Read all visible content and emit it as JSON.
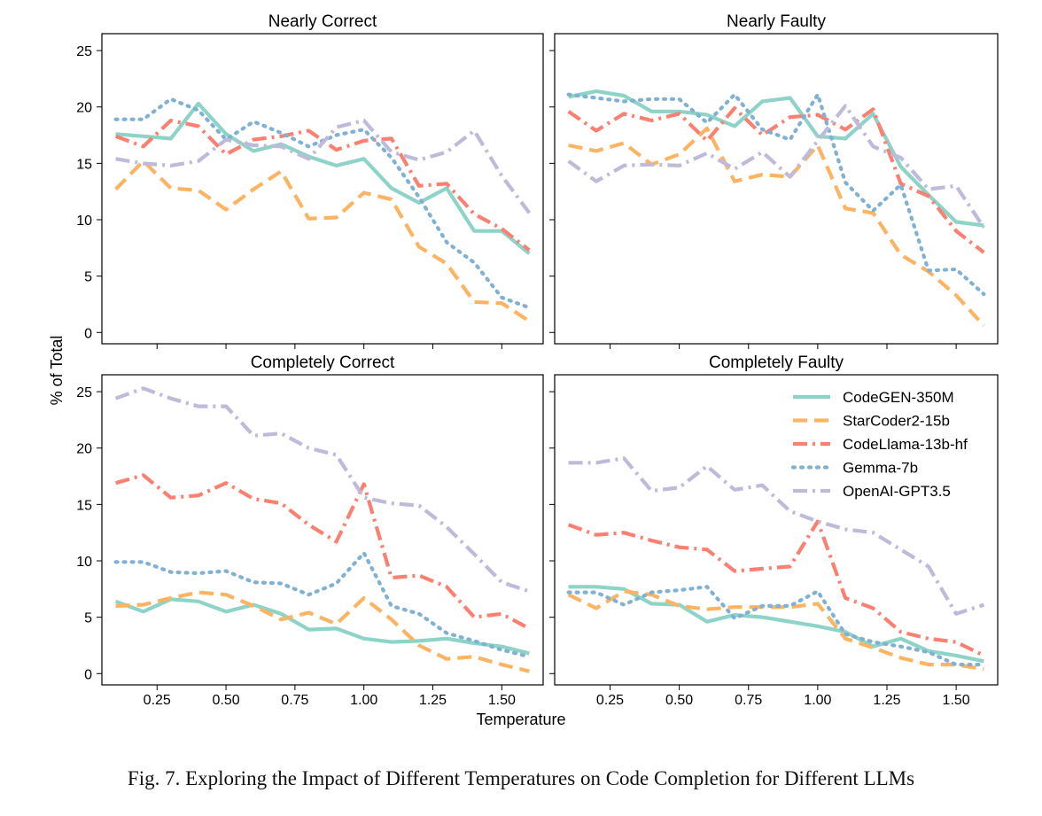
{
  "figure": {
    "ylabel": "% of Total",
    "xlabel": "Temperature",
    "caption": "Fig. 7.  Exploring the Impact of Different Temperatures on Code Completion for Different LLMs"
  },
  "chart_data": {
    "type": "line",
    "xlabel": "Temperature",
    "ylabel": "% of Total",
    "xlim": [
      0.05,
      1.65
    ],
    "ylim": [
      -1,
      26.5
    ],
    "xticks": [
      0.25,
      0.5,
      0.75,
      1.0,
      1.25,
      1.5
    ],
    "xtick_labels": [
      "0.25",
      "0.50",
      "0.75",
      "1.00",
      "1.25",
      "1.50"
    ],
    "yticks": [
      0,
      5,
      10,
      15,
      20,
      25
    ],
    "ytick_labels": [
      "0",
      "5",
      "10",
      "15",
      "20",
      "25"
    ],
    "grid": false,
    "legend_position": "top-right of the Completely Faulty panel",
    "x": [
      0.1,
      0.2,
      0.3,
      0.4,
      0.5,
      0.6,
      0.7,
      0.8,
      0.9,
      1.0,
      1.1,
      1.2,
      1.3,
      1.4,
      1.5,
      1.6
    ],
    "series_styles": [
      {
        "name": "CodeGEN-350M",
        "color": "#8dd3c7",
        "dash": "solid"
      },
      {
        "name": "StarCoder2-15b",
        "color": "#fdb462",
        "dash": "dashed"
      },
      {
        "name": "CodeLlama-13b-hf",
        "color": "#fb8072",
        "dash": "dashdot"
      },
      {
        "name": "Gemma-7b",
        "color": "#80b1d3",
        "dash": "dotted"
      },
      {
        "name": "OpenAI-GPT3.5",
        "color": "#bebada",
        "dash": "dashdot"
      }
    ],
    "panels": [
      {
        "title": "Nearly Correct",
        "series": [
          {
            "name": "CodeGEN-350M",
            "values": [
              17.6,
              17.4,
              17.2,
              20.3,
              17.6,
              16.1,
              16.7,
              15.6,
              14.8,
              15.4,
              12.8,
              11.5,
              12.8,
              9.0,
              9.0,
              7.0
            ]
          },
          {
            "name": "StarCoder2-15b",
            "values": [
              12.7,
              15.2,
              12.8,
              12.6,
              10.9,
              12.7,
              14.3,
              10.1,
              10.2,
              12.4,
              11.8,
              7.6,
              6.1,
              2.7,
              2.6,
              1.0
            ]
          },
          {
            "name": "CodeLlama-13b-hf",
            "values": [
              17.4,
              16.5,
              18.8,
              18.3,
              15.8,
              17.1,
              17.4,
              17.9,
              16.2,
              17.0,
              17.2,
              13.0,
              13.2,
              10.5,
              9.2,
              7.3
            ]
          },
          {
            "name": "Gemma-7b",
            "values": [
              18.9,
              18.9,
              20.7,
              19.7,
              17.1,
              18.7,
              17.7,
              16.5,
              17.5,
              18.0,
              15.5,
              12.0,
              8.0,
              6.2,
              3.1,
              2.2
            ]
          },
          {
            "name": "OpenAI-GPT3.5",
            "values": [
              15.4,
              15.0,
              14.8,
              15.2,
              17.1,
              16.6,
              16.5,
              15.4,
              18.2,
              18.8,
              16.0,
              15.3,
              16.0,
              17.9,
              13.9,
              10.6
            ]
          }
        ]
      },
      {
        "title": "Nearly Faulty",
        "series": [
          {
            "name": "CodeGEN-350M",
            "values": [
              20.9,
              21.4,
              21.0,
              19.6,
              19.6,
              19.3,
              18.3,
              20.5,
              20.8,
              17.4,
              17.2,
              19.4,
              14.7,
              12.2,
              9.8,
              9.5
            ]
          },
          {
            "name": "StarCoder2-15b",
            "values": [
              16.6,
              16.1,
              16.8,
              14.9,
              15.8,
              18.1,
              13.4,
              14.0,
              13.8,
              16.6,
              11.0,
              10.6,
              6.9,
              5.4,
              3.3,
              0.6
            ]
          },
          {
            "name": "CodeLlama-13b-hf",
            "values": [
              19.6,
              17.9,
              19.4,
              18.8,
              19.4,
              17.0,
              19.9,
              17.5,
              19.1,
              19.3,
              18.0,
              19.8,
              13.2,
              12.1,
              9.0,
              7.1
            ]
          },
          {
            "name": "Gemma-7b",
            "values": [
              21.1,
              20.8,
              20.5,
              20.7,
              20.7,
              18.6,
              21.1,
              18.0,
              17.1,
              21.1,
              13.3,
              10.8,
              13.1,
              5.5,
              5.6,
              3.4
            ]
          },
          {
            "name": "OpenAI-GPT3.5",
            "values": [
              15.2,
              13.4,
              14.8,
              14.9,
              14.8,
              15.9,
              14.5,
              16.0,
              13.8,
              17.0,
              20.1,
              16.5,
              15.5,
              12.7,
              13.0,
              9.3
            ]
          }
        ]
      },
      {
        "title": "Completely Correct",
        "series": [
          {
            "name": "CodeGEN-350M",
            "values": [
              6.4,
              5.5,
              6.6,
              6.4,
              5.5,
              6.1,
              5.3,
              3.9,
              4.0,
              3.1,
              2.8,
              2.9,
              3.1,
              2.7,
              2.4,
              1.8
            ]
          },
          {
            "name": "StarCoder2-15b",
            "values": [
              6.0,
              6.1,
              6.7,
              7.2,
              7.0,
              6.0,
              4.8,
              5.4,
              4.4,
              6.7,
              4.8,
              2.5,
              1.3,
              1.5,
              0.8,
              0.2
            ]
          },
          {
            "name": "CodeLlama-13b-hf",
            "values": [
              16.9,
              17.6,
              15.6,
              15.8,
              16.9,
              15.5,
              15.1,
              13.2,
              11.7,
              16.8,
              8.5,
              8.7,
              7.7,
              5.0,
              5.3,
              4.0
            ]
          },
          {
            "name": "Gemma-7b",
            "values": [
              9.9,
              9.9,
              9.0,
              8.9,
              9.1,
              8.1,
              8.0,
              7.0,
              8.0,
              10.7,
              6.0,
              5.3,
              3.6,
              2.9,
              2.1,
              1.5
            ]
          },
          {
            "name": "OpenAI-GPT3.5",
            "values": [
              24.4,
              25.3,
              24.4,
              23.7,
              23.7,
              21.1,
              21.3,
              20.0,
              19.4,
              15.6,
              15.1,
              14.9,
              13.0,
              10.6,
              8.1,
              7.3
            ]
          }
        ]
      },
      {
        "title": "Completely Faulty",
        "series": [
          {
            "name": "CodeGEN-350M",
            "values": [
              7.7,
              7.7,
              7.5,
              6.2,
              6.1,
              4.6,
              5.2,
              5.0,
              4.6,
              4.2,
              3.7,
              2.4,
              3.1,
              2.0,
              1.6,
              1.1
            ]
          },
          {
            "name": "StarCoder2-15b",
            "values": [
              7.0,
              5.8,
              7.3,
              7.0,
              6.0,
              5.7,
              5.9,
              5.9,
              5.9,
              6.2,
              3.1,
              2.3,
              1.4,
              0.8,
              0.8,
              0.4
            ]
          },
          {
            "name": "CodeLlama-13b-hf",
            "values": [
              13.2,
              12.3,
              12.5,
              11.8,
              11.2,
              11.0,
              9.1,
              9.3,
              9.5,
              13.5,
              6.7,
              5.8,
              3.7,
              3.1,
              2.8,
              1.6
            ]
          },
          {
            "name": "Gemma-7b",
            "values": [
              7.2,
              7.2,
              6.1,
              7.2,
              7.4,
              7.7,
              4.9,
              6.0,
              6.0,
              7.3,
              3.5,
              2.8,
              2.4,
              1.9,
              0.8,
              0.8
            ]
          },
          {
            "name": "OpenAI-GPT3.5",
            "values": [
              18.7,
              18.7,
              19.1,
              16.2,
              16.5,
              18.4,
              16.3,
              16.7,
              14.4,
              13.5,
              12.8,
              12.5,
              11.0,
              9.5,
              5.3,
              6.1
            ]
          }
        ]
      }
    ]
  }
}
